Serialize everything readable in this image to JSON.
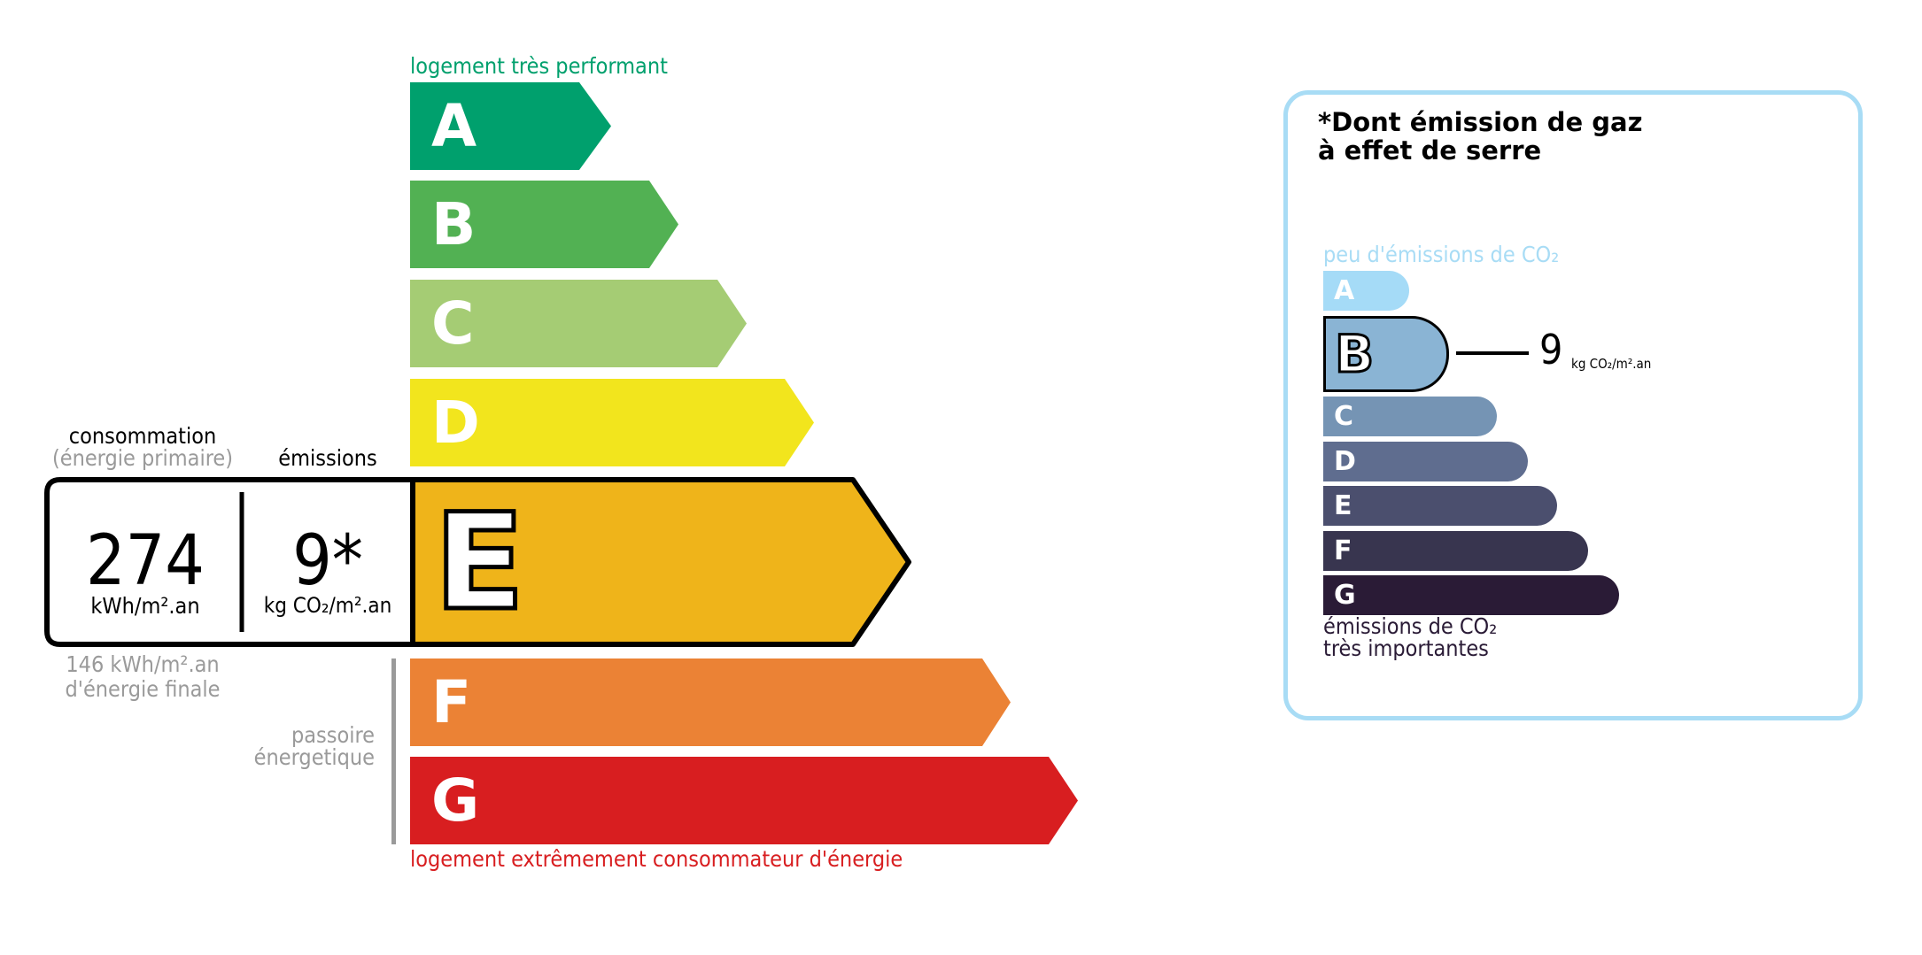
{
  "energy_label": {
    "top_caption": "logement très performant",
    "bottom_caption": "logement extrêmement consommateur d'énergie",
    "classes": [
      {
        "letter": "A",
        "color": "#00a06d"
      },
      {
        "letter": "B",
        "color": "#52b153"
      },
      {
        "letter": "C",
        "color": "#a5cc74"
      },
      {
        "letter": "D",
        "color": "#f2e51d"
      },
      {
        "letter": "E",
        "color": "#efb41a"
      },
      {
        "letter": "F",
        "color": "#eb8235"
      },
      {
        "letter": "G",
        "color": "#d81e20"
      }
    ],
    "current_class": "E",
    "consumption_label": "consommation",
    "consumption_sublabel": "(énergie primaire)",
    "emissions_label": "émissions",
    "consumption_value": "274",
    "consumption_unit": "kWh/m².an",
    "emissions_value": "9*",
    "emissions_unit": "kg CO₂/m².an",
    "final_energy_value": "146 kWh/m².an",
    "final_energy_label": "d'énergie finale",
    "passoire_line1": "passoire",
    "passoire_line2": "énergetique"
  },
  "ghg_panel": {
    "title_line1": "*Dont émission de gaz",
    "title_line2": "à effet de serre",
    "top_caption": "peu d'émissions de CO₂",
    "bottom_caption_line1": "émissions de CO₂",
    "bottom_caption_line2": "très importantes",
    "classes": [
      {
        "letter": "A",
        "color": "#a5dbf7"
      },
      {
        "letter": "B",
        "color": "#8ab4d4"
      },
      {
        "letter": "C",
        "color": "#7594b4"
      },
      {
        "letter": "D",
        "color": "#5f6d8f"
      },
      {
        "letter": "E",
        "color": "#4b4f6e"
      },
      {
        "letter": "F",
        "color": "#38354f"
      },
      {
        "letter": "G",
        "color": "#2a1b36"
      }
    ],
    "current_class": "B",
    "value": "9",
    "unit": "kg CO₂/m².an",
    "border_color": "#a8dcf5"
  }
}
